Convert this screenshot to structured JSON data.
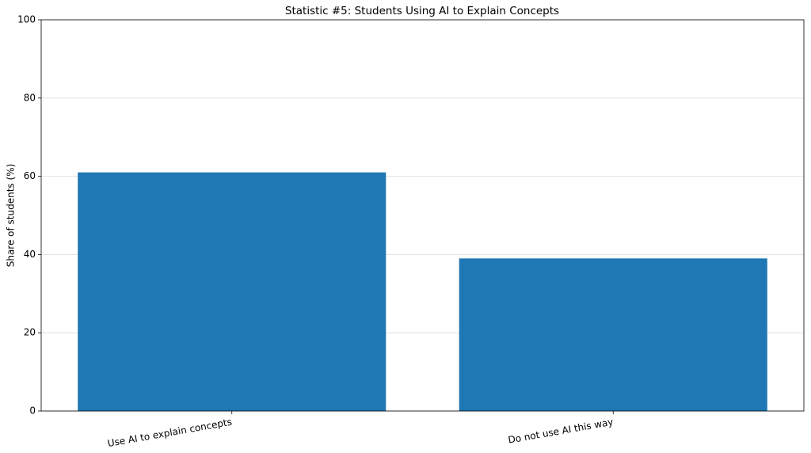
{
  "chart_data": {
    "type": "bar",
    "title": "Statistic #5: Students Using AI to Explain Concepts",
    "y_label": "Share of students (%)",
    "categories": [
      "Use AI to explain concepts",
      "Do not use AI this way"
    ],
    "values": [
      61,
      39
    ],
    "color": "#1f77b4",
    "ylim": [
      0,
      100
    ],
    "yticks": [
      0,
      20,
      40,
      60,
      80,
      100
    ],
    "grid": true
  }
}
